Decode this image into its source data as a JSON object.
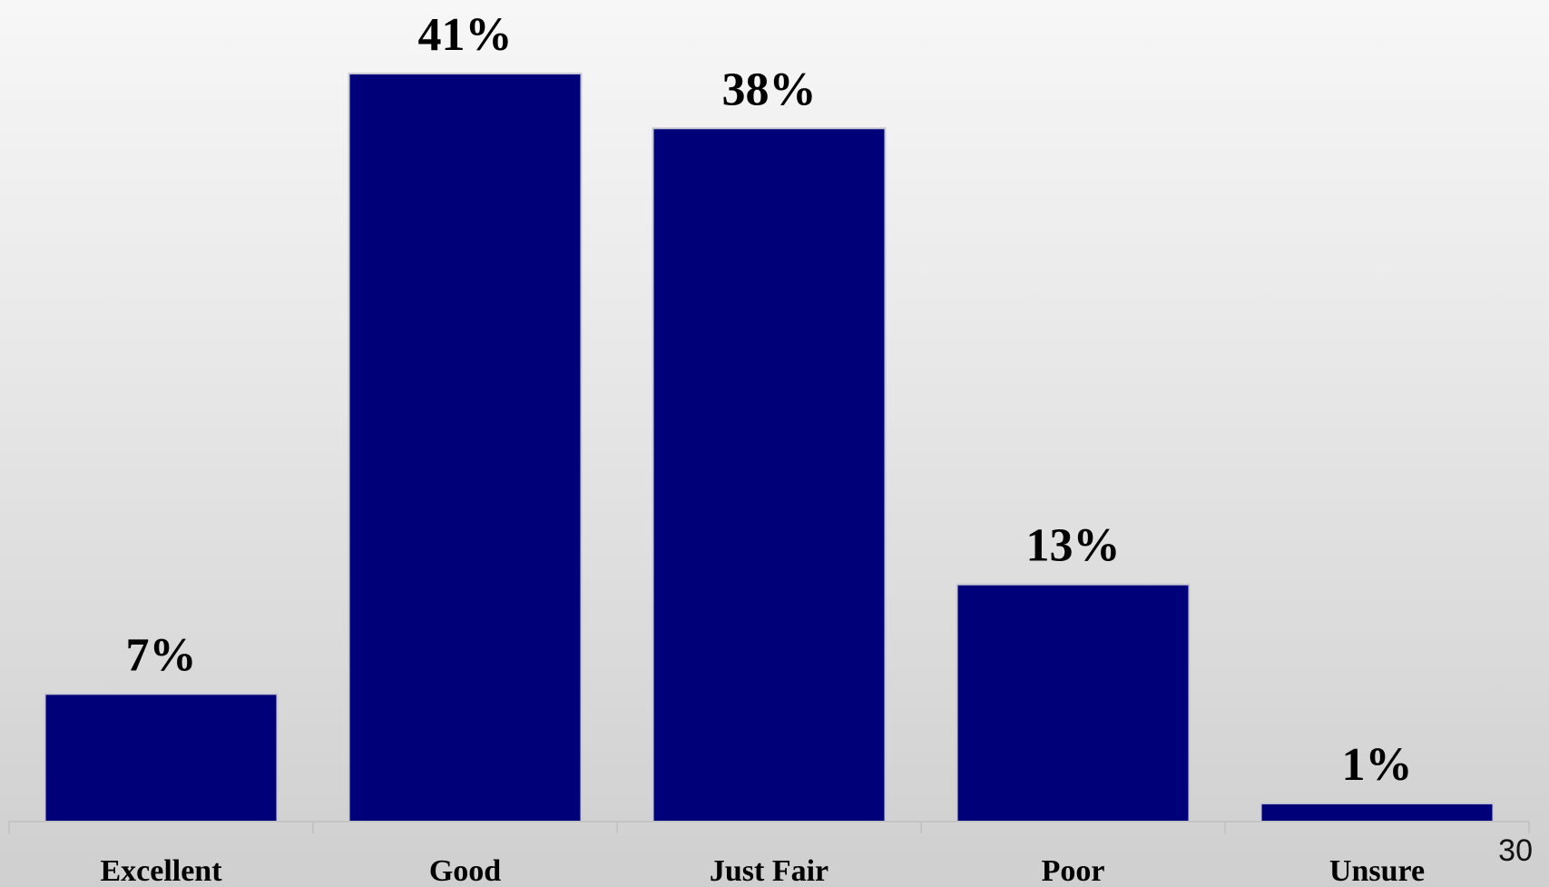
{
  "page_number": "30",
  "colors": {
    "bar_fill": "#000078",
    "text": "#000000"
  },
  "chart_data": {
    "type": "bar",
    "categories": [
      "Excellent",
      "Good",
      "Just Fair",
      "Poor",
      "Unsure"
    ],
    "values": [
      7,
      41,
      38,
      13,
      1
    ],
    "data_labels": [
      "7%",
      "41%",
      "38%",
      "13%",
      "1%"
    ],
    "title": "",
    "xlabel": "",
    "ylabel": "",
    "ylim": [
      0,
      41
    ],
    "grid": false,
    "legend": "none"
  }
}
